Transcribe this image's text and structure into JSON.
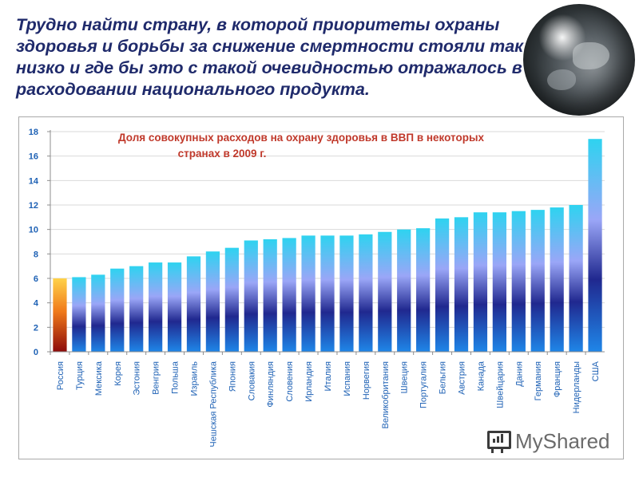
{
  "headline": "Трудно найти страну, в которой приоритеты охраны здоровья и борьбы за снижение смертности стояли так низко и где бы это с такой очевидностью отражалось в расходовании национального продукта.",
  "watermark": {
    "text": "MyShared",
    "icon": "presentation-board-icon"
  },
  "colors": {
    "headline": "#1f2a6b",
    "chart_title": "#c0392b",
    "axis_labels": "#1f62b5",
    "russia_bar": [
      "#ffd24a",
      "#f07a1a",
      "#8c0a0a"
    ],
    "other_bars": [
      "#2ed3f0",
      "#9aa6f7",
      "#20288f",
      "#1f86e8"
    ]
  },
  "chart_data": {
    "type": "bar",
    "title_lines": [
      "Доля совокупных расходов на охрану здоровья в ВВП в  некоторых",
      "странах в 2009 г."
    ],
    "xlabel": "",
    "ylabel": "",
    "ylim": [
      0,
      18
    ],
    "yticks": [
      0,
      2,
      4,
      6,
      8,
      10,
      12,
      14,
      16,
      18
    ],
    "grid": true,
    "legend": "none",
    "highlight": "Россия",
    "categories": [
      "Россия",
      "Турция",
      "Мексика",
      "Корея",
      "Эстония",
      "Венгрия",
      "Польша",
      "Израиль",
      "Чешская Республика",
      "Япония",
      "Словакия",
      "Финляндия",
      "Словения",
      "Ирландия",
      "Италия",
      "Испания",
      "Норвегия",
      "Великобритания",
      "Швеция",
      "Португалия",
      "Бельгия",
      "Австрия",
      "Канада",
      "Швейцария",
      "Дания",
      "Германия",
      "Франция",
      "Нидерланды",
      "США"
    ],
    "values": [
      6.0,
      6.1,
      6.3,
      6.8,
      7.0,
      7.3,
      7.3,
      7.8,
      8.2,
      8.5,
      9.1,
      9.2,
      9.3,
      9.5,
      9.5,
      9.5,
      9.6,
      9.8,
      10.0,
      10.1,
      10.9,
      11.0,
      11.4,
      11.4,
      11.5,
      11.6,
      11.8,
      12.0,
      17.4
    ]
  }
}
